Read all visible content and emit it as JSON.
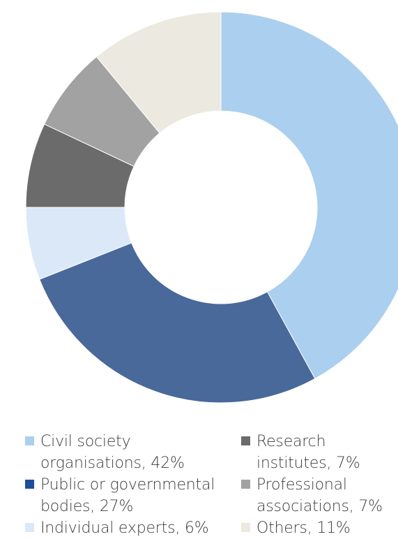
{
  "chart_data": {
    "type": "pie",
    "donut": true,
    "categories": [
      "Civil society organisations",
      "Public or governmental bodies",
      "Individual experts",
      "Research institutes",
      "Professional associations",
      "Others"
    ],
    "values": [
      42,
      27,
      6,
      7,
      7,
      11
    ],
    "unit": "%",
    "colors": [
      "#abcfee",
      "#48699a",
      "#dae8f8",
      "#6b6b6b",
      "#a2a2a2",
      "#ece9e0"
    ],
    "legend_position": "bottom",
    "legend": [
      {
        "label": "Civil society\norganisations, 42%",
        "color": "#abcfee"
      },
      {
        "label": "Public or governmental\nbodies, 27%",
        "color": "#1c4f9c"
      },
      {
        "label": "Individual experts, 6%",
        "color": "#dae8f8"
      },
      {
        "label": "Research\ninstitutes, 7%",
        "color": "#6b6b6b"
      },
      {
        "label": "Professional\nassociations, 7%",
        "color": "#a2a2a2"
      },
      {
        "label": "Others, 11%",
        "color": "#ece9e0"
      }
    ]
  }
}
